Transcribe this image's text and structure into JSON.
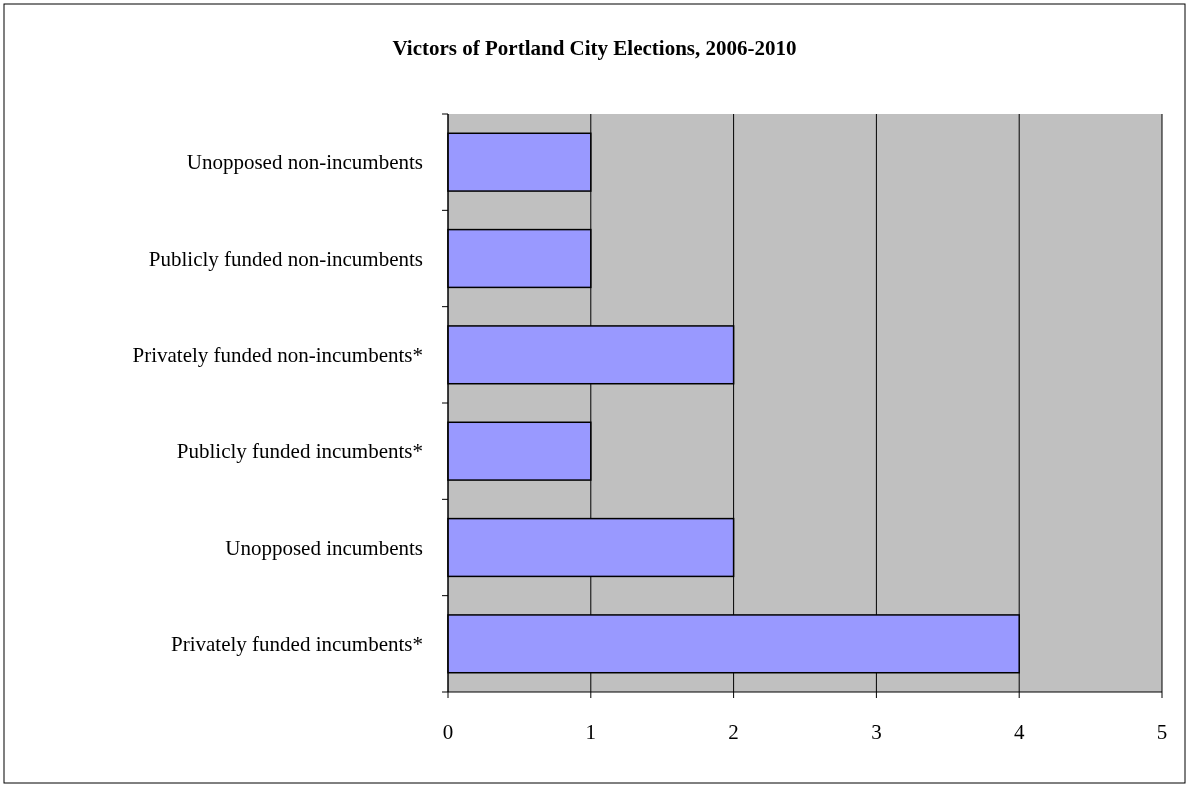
{
  "chart_data": {
    "type": "bar",
    "orientation": "horizontal",
    "title": "Victors of Portland City Elections, 2006-2010",
    "categories": [
      "Unopposed non-incumbents",
      "Publicly funded non-incumbents",
      "Privately funded non-incumbents*",
      "Publicly funded incumbents*",
      "Unopposed incumbents",
      "Privately funded incumbents*"
    ],
    "values": [
      1,
      1,
      2,
      1,
      2,
      4
    ],
    "color": "#9999ff",
    "xlim": [
      0,
      5
    ],
    "xticks": [
      0,
      1,
      2,
      3,
      4,
      5
    ],
    "grid": "x"
  }
}
